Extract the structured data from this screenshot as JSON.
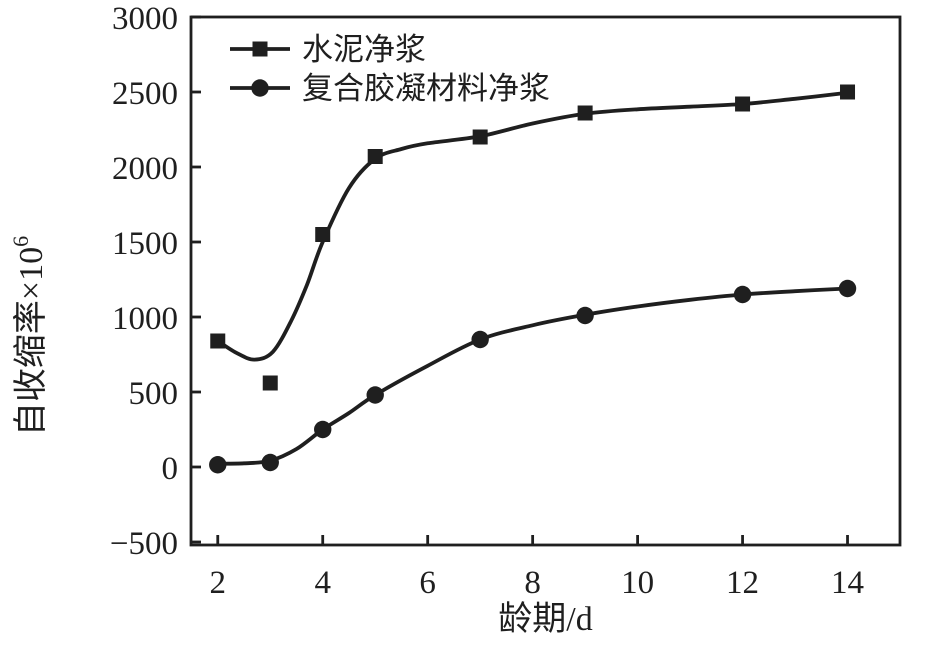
{
  "figure": {
    "background": "#ffffff",
    "ink_color": "#1f1f1f"
  },
  "chart_data": {
    "type": "line",
    "title": "",
    "xlabel": "龄期/d",
    "ylabel": "自收缩率×10⁶",
    "ylabel_base": "自收缩率×10",
    "ylabel_exponent": "6",
    "xlim": [
      1.49,
      15.0
    ],
    "ylim": [
      -520,
      3000
    ],
    "grid": false,
    "legend_position": "upper-left-inside",
    "x_ticks": [
      {
        "value": 2,
        "label": "2"
      },
      {
        "value": 4,
        "label": "4"
      },
      {
        "value": 6,
        "label": "6"
      },
      {
        "value": 8,
        "label": "8"
      },
      {
        "value": 10,
        "label": "10"
      },
      {
        "value": 12,
        "label": "12"
      },
      {
        "value": 14,
        "label": "14"
      }
    ],
    "y_ticks": [
      {
        "value": 3000,
        "label": "3000"
      },
      {
        "value": 2500,
        "label": "2500"
      },
      {
        "value": 2000,
        "label": "2000"
      },
      {
        "value": 1500,
        "label": "1500"
      },
      {
        "value": 1000,
        "label": "1000"
      },
      {
        "value": 500,
        "label": "500"
      },
      {
        "value": 0,
        "label": "0"
      },
      {
        "value": -500,
        "label": "−500"
      }
    ],
    "series": [
      {
        "name": "水泥净浆",
        "marker": "square",
        "color": "#1f1f1f",
        "x": [
          2,
          3,
          4,
          5,
          7,
          9,
          12,
          14
        ],
        "values": [
          840,
          560,
          1550,
          2070,
          2200,
          2360,
          2420,
          2500
        ],
        "fit_curve": [
          [
            2,
            840
          ],
          [
            2.35,
            762
          ],
          [
            2.7,
            716
          ],
          [
            3.05,
            768
          ],
          [
            3.4,
            975
          ],
          [
            3.7,
            1215
          ],
          [
            4,
            1500
          ],
          [
            4.5,
            1860
          ],
          [
            5,
            2055
          ],
          [
            5.5,
            2120
          ],
          [
            6,
            2158
          ],
          [
            7,
            2205
          ],
          [
            8,
            2290
          ],
          [
            9,
            2355
          ],
          [
            10,
            2385
          ],
          [
            11,
            2402
          ],
          [
            12,
            2420
          ],
          [
            13,
            2455
          ],
          [
            14,
            2495
          ]
        ]
      },
      {
        "name": "复合胶凝材料净浆",
        "marker": "circle",
        "color": "#1f1f1f",
        "x": [
          2,
          3,
          4,
          5,
          7,
          9,
          12,
          14
        ],
        "values": [
          15,
          30,
          250,
          480,
          850,
          1010,
          1150,
          1190
        ],
        "fit_curve": [
          [
            2,
            22
          ],
          [
            2.5,
            25
          ],
          [
            3,
            42
          ],
          [
            3.5,
            120
          ],
          [
            4,
            250
          ],
          [
            4.5,
            360
          ],
          [
            5,
            480
          ],
          [
            6,
            675
          ],
          [
            7,
            850
          ],
          [
            8,
            945
          ],
          [
            9,
            1015
          ],
          [
            10,
            1070
          ],
          [
            11,
            1115
          ],
          [
            12,
            1150
          ],
          [
            13,
            1172
          ],
          [
            14,
            1190
          ]
        ]
      }
    ]
  }
}
